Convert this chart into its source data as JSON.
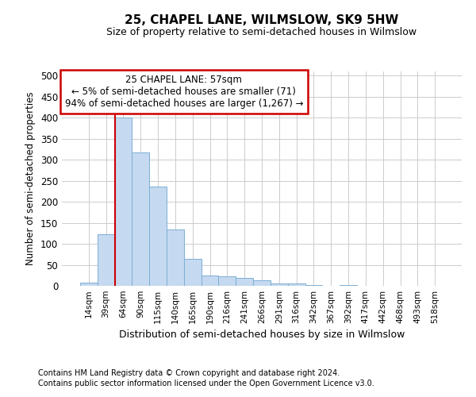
{
  "title_line1": "25, CHAPEL LANE, WILMSLOW, SK9 5HW",
  "title_line2": "Size of property relative to semi-detached houses in Wilmslow",
  "xlabel": "Distribution of semi-detached houses by size in Wilmslow",
  "ylabel": "Number of semi-detached properties",
  "bin_labels": [
    "14sqm",
    "39sqm",
    "64sqm",
    "90sqm",
    "115sqm",
    "140sqm",
    "165sqm",
    "190sqm",
    "216sqm",
    "241sqm",
    "266sqm",
    "291sqm",
    "316sqm",
    "342sqm",
    "367sqm",
    "392sqm",
    "417sqm",
    "442sqm",
    "468sqm",
    "493sqm",
    "518sqm"
  ],
  "bar_values": [
    7,
    122,
    401,
    318,
    237,
    135,
    65,
    25,
    22,
    19,
    13,
    6,
    5,
    1,
    0,
    1,
    0,
    0,
    0,
    0,
    0
  ],
  "bar_color": "#c5d9f0",
  "bar_edge_color": "#7bafd4",
  "annotation_text": "25 CHAPEL LANE: 57sqm\n← 5% of semi-detached houses are smaller (71)\n94% of semi-detached houses are larger (1,267) →",
  "annotation_box_color": "#ffffff",
  "annotation_box_edge_color": "#cc0000",
  "redline_color": "#cc0000",
  "footnote_line1": "Contains HM Land Registry data © Crown copyright and database right 2024.",
  "footnote_line2": "Contains public sector information licensed under the Open Government Licence v3.0.",
  "ylim": [
    0,
    510
  ],
  "yticks": [
    0,
    50,
    100,
    150,
    200,
    250,
    300,
    350,
    400,
    450,
    500
  ],
  "background_color": "#ffffff",
  "grid_color": "#cccccc"
}
